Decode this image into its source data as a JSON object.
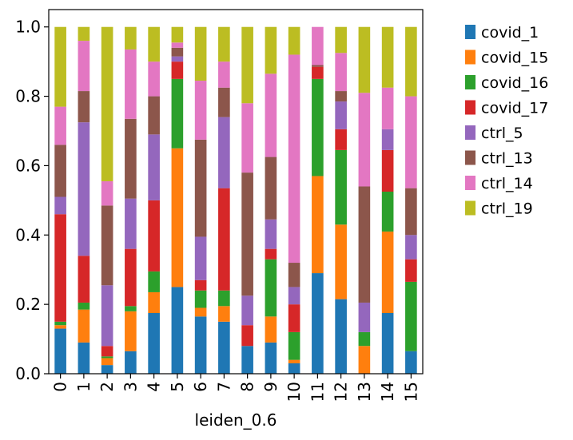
{
  "chart_data": {
    "type": "bar",
    "stacked": true,
    "xlabel": "leiden_0.6",
    "ylabel": "",
    "ylim": [
      0,
      1.05
    ],
    "yticks": [
      "0.0",
      "0.2",
      "0.4",
      "0.6",
      "0.8",
      "1.0"
    ],
    "ytick_values": [
      0,
      0.2,
      0.4,
      0.6,
      0.8,
      1.0
    ],
    "categories": [
      "0",
      "1",
      "2",
      "3",
      "4",
      "5",
      "6",
      "7",
      "8",
      "9",
      "10",
      "11",
      "12",
      "13",
      "14",
      "15"
    ],
    "legend_position": "outside-right",
    "series": [
      {
        "name": "covid_1",
        "color": "#1f77b4",
        "values": [
          0.13,
          0.09,
          0.025,
          0.065,
          0.175,
          0.25,
          0.165,
          0.15,
          0.08,
          0.09,
          0.03,
          0.29,
          0.215,
          0.0,
          0.175,
          0.065
        ]
      },
      {
        "name": "covid_15",
        "color": "#ff7f0e",
        "values": [
          0.01,
          0.095,
          0.02,
          0.115,
          0.06,
          0.4,
          0.025,
          0.045,
          0.0,
          0.075,
          0.01,
          0.28,
          0.215,
          0.08,
          0.235,
          0.0
        ]
      },
      {
        "name": "covid_16",
        "color": "#2ca02c",
        "values": [
          0.01,
          0.02,
          0.005,
          0.015,
          0.06,
          0.2,
          0.05,
          0.045,
          0.0,
          0.165,
          0.08,
          0.28,
          0.215,
          0.04,
          0.115,
          0.2
        ]
      },
      {
        "name": "covid_17",
        "color": "#d62728",
        "values": [
          0.31,
          0.135,
          0.03,
          0.165,
          0.205,
          0.05,
          0.03,
          0.295,
          0.06,
          0.03,
          0.08,
          0.035,
          0.06,
          0.0,
          0.12,
          0.065
        ]
      },
      {
        "name": "ctrl_5",
        "color": "#9467bd",
        "values": [
          0.05,
          0.385,
          0.175,
          0.145,
          0.19,
          0.015,
          0.125,
          0.205,
          0.085,
          0.085,
          0.05,
          0.0,
          0.08,
          0.085,
          0.06,
          0.07
        ]
      },
      {
        "name": "ctrl_13",
        "color": "#8c564b",
        "values": [
          0.15,
          0.09,
          0.23,
          0.23,
          0.11,
          0.025,
          0.28,
          0.085,
          0.355,
          0.18,
          0.07,
          0.005,
          0.03,
          0.335,
          0.0,
          0.135
        ]
      },
      {
        "name": "ctrl_14",
        "color": "#e377c2",
        "values": [
          0.11,
          0.145,
          0.07,
          0.2,
          0.1,
          0.015,
          0.17,
          0.075,
          0.2,
          0.24,
          0.6,
          0.11,
          0.11,
          0.27,
          0.12,
          0.265
        ]
      },
      {
        "name": "ctrl_19",
        "color": "#bcbd22",
        "values": [
          0.23,
          0.04,
          0.445,
          0.065,
          0.1,
          0.045,
          0.155,
          0.1,
          0.22,
          0.135,
          0.08,
          0.0,
          0.075,
          0.19,
          0.175,
          0.2
        ]
      }
    ]
  }
}
